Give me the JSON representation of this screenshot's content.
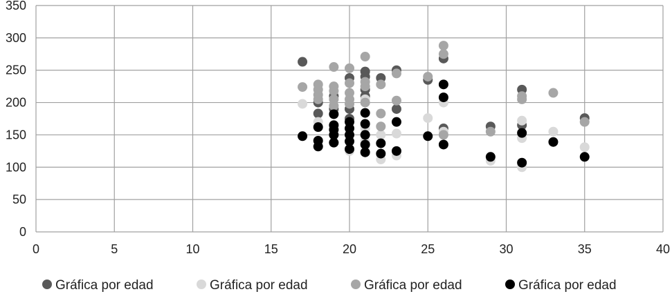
{
  "chart_data": {
    "type": "scatter",
    "title": "",
    "xlabel": "",
    "ylabel": "",
    "xlim": [
      0,
      40
    ],
    "ylim": [
      0,
      350
    ],
    "xticks": [
      0,
      5,
      10,
      15,
      20,
      25,
      30,
      35,
      40
    ],
    "yticks": [
      0,
      50,
      100,
      150,
      200,
      250,
      300,
      350
    ],
    "grid": true,
    "legend_position": "bottom",
    "series": [
      {
        "name": "Gráfica por edad",
        "color": "#595959",
        "points": [
          [
            17,
            263
          ],
          [
            18,
            200
          ],
          [
            18,
            183
          ],
          [
            19,
            210
          ],
          [
            19,
            190
          ],
          [
            20,
            238
          ],
          [
            20,
            190
          ],
          [
            20,
            175
          ],
          [
            21,
            248
          ],
          [
            21,
            240
          ],
          [
            21,
            220
          ],
          [
            21,
            210
          ],
          [
            22,
            238
          ],
          [
            23,
            250
          ],
          [
            23,
            190
          ],
          [
            25,
            235
          ],
          [
            26,
            268
          ],
          [
            26,
            160
          ],
          [
            29,
            163
          ],
          [
            31,
            220
          ],
          [
            31,
            165
          ],
          [
            35,
            176
          ]
        ]
      },
      {
        "name": "Gráfica por edad",
        "color": "#d9d9d9",
        "points": [
          [
            17,
            198
          ],
          [
            18,
            170
          ],
          [
            19,
            165
          ],
          [
            19,
            150
          ],
          [
            20,
            160
          ],
          [
            20,
            140
          ],
          [
            20,
            125
          ],
          [
            21,
            205
          ],
          [
            21,
            160
          ],
          [
            21,
            140
          ],
          [
            22,
            150
          ],
          [
            22,
            112
          ],
          [
            23,
            152
          ],
          [
            23,
            118
          ],
          [
            25,
            176
          ],
          [
            26,
            200
          ],
          [
            26,
            155
          ],
          [
            29,
            110
          ],
          [
            31,
            172
          ],
          [
            31,
            145
          ],
          [
            31,
            100
          ],
          [
            33,
            155
          ],
          [
            35,
            131
          ]
        ]
      },
      {
        "name": "Gráfica por edad",
        "color": "#a6a6a6",
        "points": [
          [
            17,
            224
          ],
          [
            18,
            228
          ],
          [
            18,
            220
          ],
          [
            18,
            212
          ],
          [
            18,
            205
          ],
          [
            19,
            255
          ],
          [
            19,
            225
          ],
          [
            19,
            218
          ],
          [
            19,
            205
          ],
          [
            19,
            195
          ],
          [
            20,
            253
          ],
          [
            20,
            230
          ],
          [
            20,
            215
          ],
          [
            20,
            205
          ],
          [
            20,
            198
          ],
          [
            21,
            271
          ],
          [
            21,
            232
          ],
          [
            21,
            225
          ],
          [
            21,
            200
          ],
          [
            22,
            228
          ],
          [
            22,
            183
          ],
          [
            22,
            163
          ],
          [
            23,
            245
          ],
          [
            23,
            203
          ],
          [
            25,
            240
          ],
          [
            26,
            288
          ],
          [
            26,
            275
          ],
          [
            26,
            150
          ],
          [
            29,
            155
          ],
          [
            31,
            210
          ],
          [
            31,
            205
          ],
          [
            33,
            215
          ],
          [
            35,
            170
          ]
        ]
      },
      {
        "name": "Gráfica por edad",
        "color": "#000000",
        "points": [
          [
            17,
            148
          ],
          [
            18,
            162
          ],
          [
            18,
            141
          ],
          [
            18,
            132
          ],
          [
            19,
            182
          ],
          [
            19,
            165
          ],
          [
            19,
            158
          ],
          [
            19,
            150
          ],
          [
            19,
            138
          ],
          [
            20,
            170
          ],
          [
            20,
            160
          ],
          [
            20,
            150
          ],
          [
            20,
            140
          ],
          [
            20,
            128
          ],
          [
            21,
            184
          ],
          [
            21,
            167
          ],
          [
            21,
            150
          ],
          [
            21,
            135
          ],
          [
            21,
            123
          ],
          [
            22,
            137
          ],
          [
            22,
            121
          ],
          [
            23,
            170
          ],
          [
            23,
            125
          ],
          [
            25,
            148
          ],
          [
            26,
            228
          ],
          [
            26,
            208
          ],
          [
            26,
            135
          ],
          [
            29,
            116
          ],
          [
            31,
            153
          ],
          [
            31,
            107
          ],
          [
            33,
            139
          ],
          [
            35,
            116
          ]
        ]
      }
    ]
  }
}
